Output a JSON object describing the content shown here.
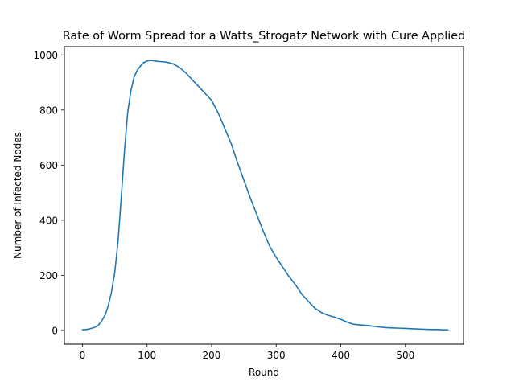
{
  "chart_data": {
    "type": "line",
    "title": "Rate of Worm Spread for a Watts_Strogatz Network with Cure Applied",
    "xlabel": "Round",
    "ylabel": "Number of Infected Nodes",
    "xlim": [
      -28,
      590
    ],
    "ylim": [
      -50,
      1030
    ],
    "xticks": [
      0,
      100,
      200,
      300,
      400,
      500
    ],
    "yticks": [
      0,
      200,
      400,
      600,
      800,
      1000
    ],
    "grid": false,
    "legend": "none",
    "series": [
      {
        "color": "#1f77b4",
        "x": [
          0,
          5,
          10,
          15,
          20,
          25,
          30,
          35,
          40,
          45,
          50,
          55,
          60,
          65,
          70,
          75,
          80,
          85,
          90,
          95,
          100,
          105,
          110,
          115,
          120,
          130,
          140,
          150,
          160,
          170,
          180,
          190,
          200,
          210,
          220,
          230,
          240,
          250,
          260,
          270,
          280,
          290,
          300,
          310,
          320,
          330,
          340,
          350,
          360,
          370,
          380,
          390,
          400,
          410,
          420,
          430,
          440,
          450,
          460,
          470,
          480,
          490,
          500,
          510,
          520,
          530,
          540,
          550,
          560,
          566
        ],
        "y": [
          2,
          3,
          5,
          8,
          12,
          20,
          35,
          55,
          90,
          140,
          210,
          320,
          480,
          650,
          790,
          870,
          920,
          945,
          960,
          972,
          978,
          980,
          979,
          977,
          976,
          974,
          968,
          955,
          935,
          910,
          885,
          860,
          835,
          790,
          735,
          680,
          610,
          545,
          480,
          420,
          360,
          305,
          265,
          230,
          195,
          165,
          130,
          105,
          80,
          65,
          55,
          48,
          40,
          30,
          22,
          20,
          18,
          15,
          12,
          10,
          9,
          8,
          7,
          6,
          5,
          4,
          3,
          3,
          2,
          2
        ]
      }
    ]
  }
}
